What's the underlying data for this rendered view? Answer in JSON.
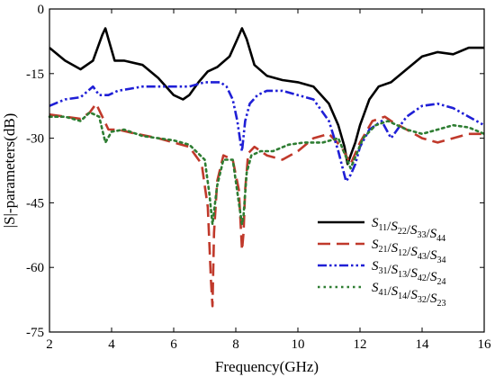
{
  "chart_data": {
    "type": "line",
    "title": "",
    "xlabel": "Frequency(GHz)",
    "ylabel": "|S|-parameters(dB)",
    "xlim": [
      2,
      16
    ],
    "ylim": [
      -75,
      0
    ],
    "xticks": [
      2,
      4,
      6,
      8,
      10,
      12,
      14,
      16
    ],
    "yticks": [
      0,
      -15,
      -30,
      -45,
      -60,
      -75
    ],
    "grid": false,
    "legend_position": "bottom-right",
    "series": [
      {
        "name": "S11/S22/S33/S44",
        "legend": [
          [
            "S",
            "11"
          ],
          [
            "/S",
            "22"
          ],
          [
            "/S",
            "33"
          ],
          [
            "/S",
            "44"
          ]
        ],
        "color": "#000000",
        "style": "solid",
        "x": [
          2.0,
          2.5,
          3.0,
          3.4,
          3.7,
          3.8,
          3.9,
          4.1,
          4.4,
          5.0,
          5.5,
          6.0,
          6.3,
          6.5,
          6.8,
          7.1,
          7.4,
          7.8,
          8.05,
          8.2,
          8.35,
          8.6,
          9.0,
          9.5,
          10.0,
          10.5,
          11.0,
          11.3,
          11.5,
          11.6,
          11.7,
          11.85,
          12.0,
          12.3,
          12.6,
          13.0,
          13.5,
          14.0,
          14.5,
          15.0,
          15.5,
          16.0
        ],
        "y": [
          -9,
          -12,
          -14,
          -12,
          -6,
          -4.5,
          -7,
          -12,
          -12,
          -13,
          -16,
          -20,
          -21,
          -20,
          -17,
          -14.5,
          -13.5,
          -11,
          -7,
          -4.5,
          -7,
          -13,
          -15.5,
          -16.5,
          -17,
          -18,
          -22,
          -27,
          -32,
          -36,
          -34,
          -31,
          -27,
          -21,
          -18,
          -17,
          -14,
          -11,
          -10,
          -10.5,
          -9,
          -9
        ]
      },
      {
        "name": "S21/S12/S43/S34",
        "legend": [
          [
            "S",
            "21"
          ],
          [
            "/S",
            "12"
          ],
          [
            "/S",
            "43"
          ],
          [
            "/S",
            "34"
          ]
        ],
        "color": "#c0392b",
        "style": "dashed",
        "x": [
          2.0,
          2.5,
          3.0,
          3.3,
          3.5,
          3.7,
          3.9,
          4.2,
          4.8,
          5.5,
          6.0,
          6.5,
          6.9,
          7.1,
          7.2,
          7.25,
          7.3,
          7.4,
          7.6,
          7.9,
          8.1,
          8.2,
          8.25,
          8.3,
          8.4,
          8.6,
          9.0,
          9.5,
          10.0,
          10.5,
          11.0,
          11.4,
          11.7,
          12.0,
          12.4,
          12.8,
          13.0,
          13.5,
          14.0,
          14.5,
          15.0,
          15.5,
          16.0
        ],
        "y": [
          -24.5,
          -25,
          -25.5,
          -24,
          -22,
          -25,
          -28,
          -28,
          -29,
          -30,
          -31,
          -32,
          -36,
          -46,
          -63,
          -69,
          -52,
          -40,
          -34,
          -35,
          -42,
          -56,
          -52,
          -42,
          -33.5,
          -32,
          -34,
          -35,
          -33,
          -30,
          -29,
          -32,
          -36,
          -31,
          -26,
          -25,
          -26,
          -28,
          -30,
          -31,
          -30,
          -29,
          -29
        ]
      },
      {
        "name": "S31/S13/S42/S24",
        "legend": [
          [
            "S",
            "31"
          ],
          [
            "/S",
            "13"
          ],
          [
            "/S",
            "42"
          ],
          [
            "/S",
            "24"
          ]
        ],
        "color": "#1f1fd6",
        "style": "dashdotdot",
        "x": [
          2.0,
          2.5,
          3.0,
          3.4,
          3.6,
          3.9,
          4.2,
          4.6,
          5.0,
          5.5,
          6.0,
          6.5,
          7.0,
          7.3,
          7.5,
          7.7,
          7.9,
          8.05,
          8.15,
          8.2,
          8.3,
          8.45,
          8.7,
          9.0,
          9.5,
          10.0,
          10.5,
          11.0,
          11.3,
          11.55,
          11.7,
          11.85,
          12.0,
          12.3,
          12.7,
          13.0,
          13.5,
          14.0,
          14.5,
          15.0,
          15.5,
          16.0
        ],
        "y": [
          -22.5,
          -21,
          -20.5,
          -18,
          -20,
          -20,
          -19,
          -18.5,
          -18,
          -18,
          -18,
          -18,
          -17,
          -17,
          -17,
          -18,
          -21,
          -26,
          -31,
          -33,
          -26,
          -22,
          -20,
          -19,
          -19,
          -20,
          -21,
          -26,
          -33,
          -40,
          -38.5,
          -36,
          -32,
          -28,
          -26,
          -30,
          -25,
          -22.5,
          -22,
          -23,
          -25,
          -27
        ]
      },
      {
        "name": "S41/S14/S32/S23",
        "legend": [
          [
            "S",
            "41"
          ],
          [
            "/S",
            "14"
          ],
          [
            "/S",
            "32"
          ],
          [
            "/S",
            "23"
          ]
        ],
        "color": "#2e7d32",
        "style": "dotted",
        "x": [
          2.0,
          2.5,
          3.0,
          3.3,
          3.6,
          3.8,
          4.0,
          4.4,
          5.0,
          5.5,
          6.0,
          6.5,
          7.0,
          7.15,
          7.25,
          7.4,
          7.6,
          7.9,
          8.1,
          8.2,
          8.25,
          8.35,
          8.5,
          8.8,
          9.2,
          9.7,
          10.2,
          10.8,
          11.3,
          11.7,
          12.1,
          12.5,
          12.9,
          13.5,
          14.0,
          14.5,
          15.0,
          15.5,
          16.0
        ],
        "y": [
          -25,
          -25,
          -26,
          -24,
          -25,
          -31,
          -28.5,
          -28,
          -29.5,
          -30,
          -30.5,
          -31.5,
          -35,
          -43,
          -50,
          -41,
          -35,
          -35,
          -45,
          -50,
          -48,
          -38,
          -34,
          -33,
          -33,
          -31.5,
          -31,
          -31,
          -30,
          -37,
          -30,
          -27,
          -26,
          -28,
          -29,
          -28,
          -27,
          -27.5,
          -29
        ]
      }
    ]
  }
}
